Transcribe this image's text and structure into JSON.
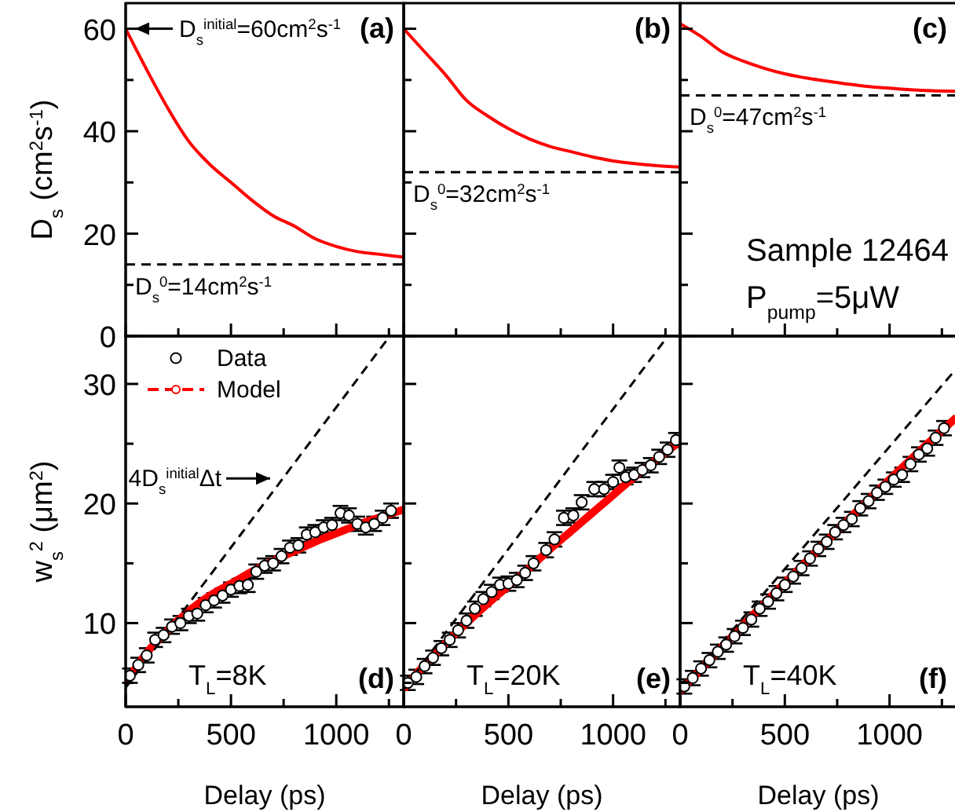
{
  "chart_data": [
    {
      "type": "line",
      "ylabel": "D$_{s}$ (cm$^{2}$s$^{-1}$)",
      "xlim": [
        0,
        1320
      ],
      "xticks": [
        0,
        {
          "value": 250,
          "label": null
        },
        500,
        {
          "value": 750,
          "label": null
        },
        1000,
        {
          "value": 1250,
          "label": null
        }
      ],
      "ylim": [
        0,
        65
      ],
      "yticks": [
        0,
        {
          "value": 10,
          "label": null
        },
        20,
        {
          "value": 30,
          "label": null
        },
        40,
        {
          "value": 50,
          "label": null
        },
        60
      ],
      "tick_labels": "y",
      "series": [
        {
          "color": "#ff0000",
          "x": [
            0,
            100,
            200,
            300,
            400,
            500,
            600,
            700,
            800,
            900,
            1000,
            1100,
            1200,
            1320
          ],
          "values": [
            60,
            52,
            44.5,
            38,
            33.5,
            30,
            26.5,
            23.5,
            21.5,
            19,
            17.5,
            16.5,
            16,
            15.4
          ]
        }
      ],
      "ref_lines": [
        {
          "axis": "y",
          "value": 14,
          "label": "D$_{s}$$^{0}$=14cm$^{2}$s$^{-1}$",
          "color": "#000000",
          "line_style": "dashed"
        }
      ],
      "annotations": [
        "(a)",
        {
          "text": "D$_{s}$$^{initial}$=60cm$^{2}$s$^{-1}$",
          "x": 0,
          "y": 60
        }
      ]
    },
    {
      "type": "line",
      "xlim": [
        0,
        1320
      ],
      "xticks": [
        0,
        {
          "value": 250,
          "label": null
        },
        500,
        {
          "value": 750,
          "label": null
        },
        1000,
        {
          "value": 1250,
          "label": null
        }
      ],
      "ylim": [
        0,
        65
      ],
      "yticks": [
        0,
        {
          "value": 10,
          "label": null
        },
        20,
        {
          "value": 30,
          "label": null
        },
        40,
        {
          "value": 50,
          "label": null
        },
        60
      ],
      "tick_labels": false,
      "series": [
        {
          "color": "#ff0000",
          "x": [
            0,
            100,
            200,
            300,
            400,
            500,
            600,
            700,
            800,
            900,
            1000,
            1100,
            1200,
            1320
          ],
          "values": [
            60,
            55.5,
            51,
            46,
            43,
            40.5,
            38.5,
            37,
            36,
            35,
            34.2,
            33.7,
            33.3,
            33
          ]
        }
      ],
      "ref_lines": [
        {
          "axis": "y",
          "value": 32,
          "label": "D$_{s}$$^{0}$=32cm$^{2}$s$^{-1}$",
          "color": "#000000",
          "line_style": "dashed"
        }
      ],
      "annotations": [
        "(b)"
      ]
    },
    {
      "type": "line",
      "xlim": [
        0,
        1320
      ],
      "xticks": [
        0,
        {
          "value": 250,
          "label": null
        },
        500,
        {
          "value": 750,
          "label": null
        },
        1000,
        {
          "value": 1250,
          "label": null
        }
      ],
      "ylim": [
        0,
        65
      ],
      "yticks": [
        0,
        {
          "value": 10,
          "label": null
        },
        20,
        {
          "value": 30,
          "label": null
        },
        40,
        {
          "value": 50,
          "label": null
        },
        60
      ],
      "tick_labels": false,
      "series": [
        {
          "color": "#ff0000",
          "x": [
            0,
            100,
            200,
            300,
            400,
            500,
            600,
            700,
            800,
            900,
            1000,
            1100,
            1200,
            1320
          ],
          "values": [
            61,
            58.5,
            55.5,
            53.7,
            52.3,
            51.2,
            50.4,
            49.8,
            49.2,
            48.7,
            48.4,
            48.1,
            47.9,
            47.8
          ]
        }
      ],
      "ref_lines": [
        {
          "axis": "y",
          "value": 47,
          "label": "D$_{s}$$^{0}$=47cm$^{2}$s$^{-1}$",
          "color": "#000000",
          "line_style": "dashed"
        }
      ],
      "annotations": [
        "(c)",
        "Sample 12464",
        "P$_{pump}$=5μW"
      ]
    },
    {
      "type": "line",
      "xlabel": "Delay (ps)",
      "ylabel": "w$_{s}$$^{2}$ (μm$^{2}$)",
      "xlim": [
        0,
        1320
      ],
      "xticks": [
        0,
        {
          "value": 250,
          "label": null
        },
        500,
        {
          "value": 750,
          "label": null
        },
        1000,
        {
          "value": 1250,
          "label": null
        }
      ],
      "ylim": [
        3,
        34
      ],
      "yticks": [
        {
          "value": 5,
          "label": null
        },
        10,
        {
          "value": 15,
          "label": null
        },
        20,
        {
          "value": 25,
          "label": null
        },
        30
      ],
      "legend": "top left",
      "series": [
        {
          "name": "Data",
          "type": "scatter",
          "marker": "circle",
          "color": "#000000",
          "x": [
            20,
            60,
            100,
            140,
            180,
            220,
            260,
            300,
            340,
            380,
            420,
            460,
            500,
            540,
            580,
            620,
            660,
            700,
            740,
            780,
            820,
            860,
            900,
            940,
            980,
            1020,
            1060,
            1100,
            1140,
            1180,
            1220,
            1260
          ],
          "values": [
            5.6,
            6.5,
            7.3,
            8.6,
            9.0,
            9.7,
            10.0,
            10.6,
            10.8,
            11.5,
            11.9,
            12.3,
            12.8,
            13.1,
            13.2,
            14.3,
            14.8,
            15.0,
            15.6,
            16.3,
            16.5,
            17.4,
            17.6,
            18.0,
            18.2,
            19.2,
            19.0,
            18.3,
            18.0,
            18.3,
            18.8,
            19.4
          ],
          "errors": [
            0.6,
            0.6,
            0.6,
            0.6,
            0.6,
            0.6,
            0.6,
            0.6,
            0.6,
            0.6,
            0.6,
            0.6,
            0.6,
            0.6,
            0.6,
            0.6,
            0.6,
            0.6,
            0.6,
            0.6,
            0.6,
            0.6,
            0.6,
            0.6,
            0.6,
            0.6,
            0.6,
            0.6,
            0.6,
            0.6,
            0.6,
            0.6
          ]
        },
        {
          "name": "Model",
          "color": "#ff0000",
          "x": [
            0,
            100,
            200,
            300,
            400,
            500,
            600,
            700,
            800,
            900,
            1000,
            1100,
            1200,
            1320
          ],
          "values": [
            5,
            7.5,
            9.4,
            11,
            12.3,
            13.3,
            14.3,
            15.2,
            16,
            16.8,
            17.5,
            18.2,
            18.8,
            19.5
          ]
        },
        {
          "line_style": "dashed",
          "color": "#000000",
          "x": [
            0,
            1254
          ],
          "values": [
            4.6,
            34
          ]
        }
      ],
      "annotations": [
        "(d)",
        "T$_{L}$=8K",
        {
          "text": "4D$_{s}$$^{initial}$Δt",
          "x": 716,
          "y": 22.1
        }
      ]
    },
    {
      "type": "line",
      "xlabel": "Delay (ps)",
      "xlim": [
        0,
        1320
      ],
      "xticks": [
        0,
        {
          "value": 250,
          "label": null
        },
        500,
        {
          "value": 750,
          "label": null
        },
        1000,
        {
          "value": 1250,
          "label": null
        }
      ],
      "ylim": [
        3,
        34
      ],
      "yticks": [
        {
          "value": 5,
          "label": null
        },
        10,
        {
          "value": 15,
          "label": null
        },
        20,
        {
          "value": 25,
          "label": null
        },
        30
      ],
      "tick_labels": "x",
      "series": [
        {
          "type": "scatter",
          "marker": "circle",
          "color": "#000000",
          "x": [
            20,
            60,
            100,
            140,
            180,
            220,
            260,
            300,
            340,
            380,
            420,
            460,
            500,
            540,
            580,
            620,
            680,
            720,
            765,
            810,
            850,
            910,
            957,
            1000,
            1030,
            1060,
            1100,
            1140,
            1180,
            1220,
            1260,
            1300
          ],
          "values": [
            5.0,
            5.5,
            6.4,
            7.1,
            7.9,
            8.6,
            9.4,
            10.2,
            11.2,
            12.0,
            12.6,
            13.2,
            13.3,
            13.6,
            14.2,
            15.0,
            16.1,
            17.0,
            18.8,
            19.0,
            20.1,
            21.2,
            21.2,
            21.8,
            23.0,
            22.2,
            22.4,
            22.8,
            23.2,
            23.9,
            24.5,
            25.3
          ],
          "errors": [
            0.6,
            0.6,
            0.6,
            0.6,
            0.6,
            0.6,
            0.6,
            0.6,
            0.6,
            0.6,
            0.6,
            0.6,
            0.6,
            0.6,
            0.6,
            0.6,
            0.6,
            0.6,
            0.6,
            0.6,
            0.6,
            0.6,
            0.6,
            0.6,
            0.6,
            0.6,
            0.6,
            0.6,
            0.6,
            0.6,
            0.6,
            0.6
          ]
        },
        {
          "color": "#ff0000",
          "x": [
            0,
            100,
            200,
            300,
            400,
            500,
            600,
            700,
            800,
            900,
            1000,
            1100,
            1200,
            1320
          ],
          "values": [
            4.5,
            6.5,
            8.3,
            10,
            11.6,
            13.1,
            14.6,
            16.2,
            17.7,
            19.2,
            20.7,
            22.2,
            23.6,
            25.2
          ]
        },
        {
          "line_style": "dashed",
          "color": "#000000",
          "x": [
            0,
            1261
          ],
          "values": [
            4.5,
            34
          ]
        }
      ],
      "annotations": [
        "(e)",
        "T$_{L}$=20K"
      ]
    },
    {
      "type": "line",
      "xlabel": "Delay (ps)",
      "xlim": [
        0,
        1320
      ],
      "xticks": [
        0,
        {
          "value": 250,
          "label": null
        },
        500,
        {
          "value": 750,
          "label": null
        },
        1000,
        {
          "value": 1250,
          "label": null
        }
      ],
      "ylim": [
        3,
        34
      ],
      "yticks": [
        {
          "value": 5,
          "label": null
        },
        10,
        {
          "value": 15,
          "label": null
        },
        20,
        {
          "value": 25,
          "label": null
        },
        30
      ],
      "tick_labels": "x",
      "series": [
        {
          "type": "scatter",
          "marker": "circle",
          "color": "#000000",
          "x": [
            20,
            60,
            100,
            140,
            180,
            220,
            260,
            300,
            340,
            380,
            420,
            460,
            500,
            540,
            580,
            620,
            660,
            700,
            740,
            780,
            820,
            860,
            900,
            940,
            980,
            1020,
            1060,
            1100,
            1140,
            1180,
            1220,
            1260
          ],
          "values": [
            4.7,
            5.4,
            6.2,
            6.9,
            7.6,
            8.2,
            8.9,
            9.6,
            10.3,
            11.2,
            11.8,
            12.5,
            13.2,
            13.9,
            14.6,
            15.4,
            16.2,
            16.8,
            17.6,
            18.2,
            18.7,
            19.6,
            20.2,
            20.9,
            21.4,
            22.0,
            22.4,
            23.3,
            24.1,
            24.6,
            25.5,
            26.3
          ],
          "errors": [
            0.6,
            0.6,
            0.6,
            0.6,
            0.6,
            0.6,
            0.6,
            0.6,
            0.6,
            0.6,
            0.6,
            0.6,
            0.6,
            0.6,
            0.6,
            0.6,
            0.6,
            0.6,
            0.6,
            0.6,
            0.6,
            0.6,
            0.6,
            0.6,
            0.6,
            0.6,
            0.6,
            0.6,
            0.6,
            0.6,
            0.6,
            0.6
          ]
        },
        {
          "color": "#ff0000",
          "x": [
            0,
            200,
            400,
            600,
            800,
            1000,
            1200,
            1320
          ],
          "values": [
            4.3,
            8,
            11.6,
            15.1,
            18.6,
            22,
            25.3,
            27.2
          ]
        },
        {
          "line_style": "dashed",
          "color": "#000000",
          "x": [
            0,
            1320
          ],
          "values": [
            4.3,
            31.3
          ]
        }
      ],
      "annotations": [
        "(f)",
        "T$_{L}$=40K"
      ]
    }
  ]
}
